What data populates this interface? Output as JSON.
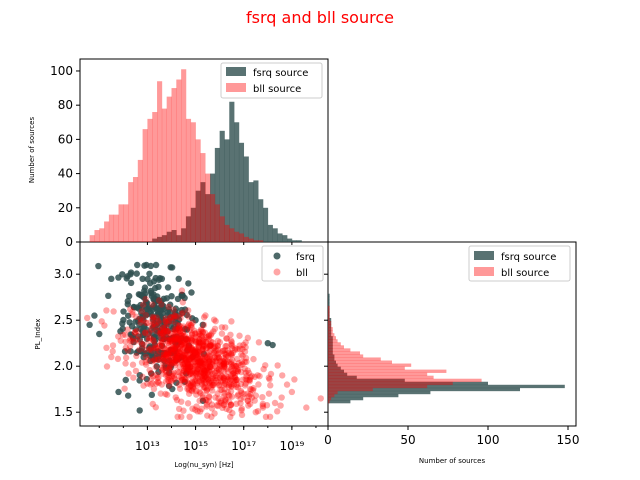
{
  "figure": {
    "suptitle": "fsrq and bll source",
    "title_color": "#ff0000"
  },
  "colors": {
    "fsrq": "#2f4f4f",
    "bll": "#ff0000",
    "bll_hist": "#ff9999"
  },
  "chart_data": [
    {
      "id": "top-hist",
      "type": "bar",
      "title": "",
      "xlabel": "",
      "ylabel": "Number of sources",
      "xlim": [
        10.2,
        20.5
      ],
      "ylim": [
        0,
        107
      ],
      "yticks": [
        0,
        20,
        40,
        60,
        80,
        100
      ],
      "legend": {
        "placement": "top-right",
        "entries": [
          "fsrq source",
          "bll source"
        ]
      },
      "bin_edges_start": 10.6,
      "bin_width": 0.2,
      "series": [
        {
          "name": "fsrq source",
          "color": "#2f4f4f",
          "alpha": 0.8,
          "values": [
            0,
            0,
            0,
            0,
            0,
            0,
            0,
            0,
            0,
            0,
            0,
            0,
            0,
            2,
            3,
            4,
            6,
            7,
            4,
            8,
            15,
            20,
            30,
            35,
            28,
            40,
            55,
            65,
            60,
            82,
            70,
            58,
            50,
            35,
            36,
            25,
            20,
            10,
            8,
            5,
            4,
            2,
            1,
            1,
            0
          ]
        },
        {
          "name": "bll source",
          "color": "#ff0000",
          "alpha": 0.4,
          "values": [
            4,
            7,
            8,
            12,
            16,
            16,
            22,
            22,
            35,
            38,
            48,
            66,
            72,
            76,
            94,
            78,
            85,
            90,
            95,
            101,
            72,
            70,
            60,
            52,
            40,
            28,
            22,
            15,
            10,
            8,
            6,
            5,
            3,
            2,
            1,
            1,
            0,
            0,
            0,
            0,
            0,
            0,
            0,
            0,
            0
          ]
        }
      ]
    },
    {
      "id": "scatter",
      "type": "scatter",
      "title": "",
      "xlabel": "Log(nu_syn) [Hz]",
      "ylabel": "PL_Index",
      "x_scale": "log",
      "xlim": [
        10.2,
        20.5
      ],
      "ylim": [
        1.35,
        3.35
      ],
      "xtick_labels": [
        "10¹³",
        "10¹⁵",
        "10¹⁷",
        "10¹⁹"
      ],
      "xtick_exponents": [
        13,
        15,
        17,
        19
      ],
      "yticks": [
        1.5,
        2.0,
        2.5,
        3.0
      ],
      "ytick_labels": [
        "1.5",
        "2.0",
        "2.5",
        "3.0"
      ],
      "legend": {
        "placement": "top-right",
        "entries": [
          "fsrq",
          "bll"
        ]
      },
      "series": [
        {
          "name": "fsrq",
          "color": "#2f4f4f",
          "alpha": 0.85,
          "n": 280,
          "center": [
            13.4,
            2.45
          ],
          "spread": [
            0.7,
            0.3
          ],
          "extra_points": [
            [
              10.6,
              2.45
            ],
            [
              10.8,
              2.55
            ],
            [
              11.0,
              2.35
            ],
            [
              11.5,
              2.95
            ],
            [
              12.3,
              3.0
            ],
            [
              12.8,
              2.95
            ],
            [
              13.6,
              2.95
            ],
            [
              14.3,
              2.95
            ],
            [
              14.7,
              2.9
            ],
            [
              14.3,
              2.55
            ],
            [
              15.0,
              2.5
            ],
            [
              15.3,
              2.45
            ],
            [
              12.1,
              1.85
            ],
            [
              11.8,
              1.72
            ],
            [
              18.0,
              2.25
            ],
            [
              18.2,
              2.23
            ],
            [
              12.2,
              1.68
            ]
          ]
        },
        {
          "name": "bll",
          "color": "#ff0000",
          "alpha": 0.35,
          "n": 1000,
          "center": [
            15.0,
            2.05
          ],
          "spread": [
            1.3,
            0.22
          ],
          "extra_points": [
            [
              17.8,
              1.55
            ],
            [
              18.3,
              1.6
            ],
            [
              18.8,
              1.8
            ],
            [
              19.6,
              1.55
            ],
            [
              20.2,
              1.65
            ],
            [
              19.0,
              1.72
            ],
            [
              11.3,
              2.2
            ],
            [
              11.5,
              2.1
            ],
            [
              17.5,
              1.5
            ],
            [
              18.6,
              1.9
            ]
          ]
        }
      ]
    },
    {
      "id": "right-hist",
      "type": "bar",
      "orientation": "horizontal",
      "title": "",
      "xlabel": "Number of sources",
      "ylabel": "",
      "xlim": [
        0,
        155
      ],
      "xticks": [
        0,
        50,
        100,
        150
      ],
      "ylim": [
        1.35,
        3.35
      ],
      "legend": {
        "placement": "top-right",
        "entries": [
          "fsrq source",
          "bll source"
        ]
      },
      "bin_edges_start": 1.6,
      "bin_width": 0.033,
      "series": [
        {
          "name": "fsrq source",
          "color": "#2f4f4f",
          "alpha": 0.8,
          "values": [
            14,
            22,
            44,
            64,
            120,
            148,
            100,
            48,
            18,
            12,
            10,
            8,
            6,
            5,
            4,
            4,
            3,
            3,
            3,
            3,
            3,
            3,
            2,
            2,
            2,
            2,
            2,
            2,
            1,
            1,
            1,
            1,
            1,
            1,
            1,
            1,
            0,
            0,
            0,
            0,
            0,
            0
          ]
        },
        {
          "name": "bll source",
          "color": "#ff0000",
          "alpha": 0.4,
          "values": [
            1,
            2,
            4,
            6,
            28,
            62,
            78,
            96,
            66,
            62,
            74,
            48,
            52,
            40,
            33,
            22,
            20,
            14,
            10,
            8,
            6,
            5,
            4,
            3,
            3,
            2,
            2,
            1,
            1,
            1,
            1,
            1,
            0,
            0,
            0,
            0,
            0,
            0,
            0,
            0,
            0,
            0
          ]
        }
      ]
    }
  ]
}
